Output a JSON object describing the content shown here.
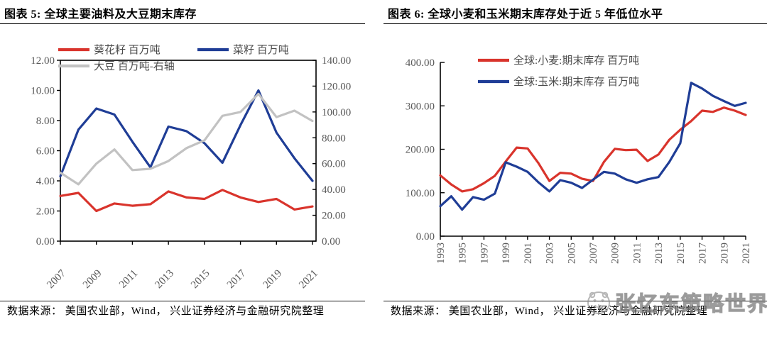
{
  "panels": [
    {
      "title": "图表 5:  全球主要油料及大豆期末库存",
      "source": "数据来源： 美国农业部，Wind， 兴业证券经济与金融研究院整理"
    },
    {
      "title": "图表 6:  全球小麦和玉米期末库存处于近 5 年低位水平",
      "source": "数据来源： 美国农业部，Wind， 兴业证券经济与金融研究院整理"
    }
  ],
  "watermark": {
    "icon": "panda-logo",
    "text": "张忆东策略世界"
  },
  "colors": {
    "red_line": "#d9342c",
    "blue_line": "#1f3d96",
    "gray_line": "#c2c2c2",
    "axis_label": "#595959",
    "legend_text": "#4a4a4a",
    "axis_line": "#000000"
  },
  "chart_data": [
    {
      "type": "line",
      "title": "全球主要油料及大豆期末库存",
      "x": [
        2007,
        2008,
        2009,
        2010,
        2011,
        2012,
        2013,
        2014,
        2015,
        2016,
        2017,
        2018,
        2019,
        2020,
        2021
      ],
      "x_tick_labels": [
        "2007",
        "2009",
        "2011",
        "2013",
        "2015",
        "2017",
        "2019",
        "2021"
      ],
      "left_axis": {
        "min": 0,
        "max": 12,
        "ticks": [
          0,
          2,
          4,
          6,
          8,
          10,
          12
        ],
        "tick_labels": [
          "0.00",
          "2.00",
          "4.00",
          "6.00",
          "8.00",
          "10.00",
          "12.00"
        ]
      },
      "right_axis": {
        "min": 0,
        "max": 140,
        "ticks": [
          0,
          20,
          40,
          60,
          80,
          100,
          120,
          140
        ],
        "tick_labels": [
          "0.00",
          "20.00",
          "40.00",
          "60.00",
          "80.00",
          "100.00",
          "120.00",
          "140.00"
        ]
      },
      "grid": false,
      "legend_position": "top-left-two-rows",
      "series": [
        {
          "name": "葵花籽 百万吨",
          "axis": "left",
          "color": "#d9342c",
          "values": [
            3.0,
            3.2,
            2.0,
            2.5,
            2.35,
            2.45,
            3.3,
            2.9,
            2.8,
            3.4,
            2.9,
            2.6,
            2.8,
            2.1,
            2.3
          ]
        },
        {
          "name": "菜籽 百万吨",
          "axis": "left",
          "color": "#1f3d96",
          "values": [
            4.3,
            7.4,
            8.8,
            8.4,
            6.6,
            4.9,
            7.6,
            7.3,
            6.5,
            5.2,
            7.7,
            10.0,
            7.2,
            5.5,
            4.0
          ]
        },
        {
          "name": "大豆 百万吨-右轴",
          "axis": "right",
          "color": "#c2c2c2",
          "values": [
            53,
            44,
            60,
            71,
            55,
            56,
            62,
            72,
            78,
            97,
            100,
            114,
            96,
            101,
            93
          ]
        }
      ]
    },
    {
      "type": "line",
      "title": "全球小麦和玉米期末库存处于近 5 年低位水平",
      "x": [
        1993,
        1994,
        1995,
        1996,
        1997,
        1998,
        1999,
        2000,
        2001,
        2002,
        2003,
        2004,
        2005,
        2006,
        2007,
        2008,
        2009,
        2010,
        2011,
        2012,
        2013,
        2014,
        2015,
        2016,
        2017,
        2018,
        2019,
        2020,
        2021
      ],
      "x_tick_labels": [
        "1993",
        "1995",
        "1997",
        "1999",
        "2001",
        "2003",
        "2005",
        "2007",
        "2009",
        "2011",
        "2013",
        "2015",
        "2017",
        "2019",
        "2021"
      ],
      "left_axis": {
        "min": 0,
        "max": 400,
        "ticks": [
          0,
          100,
          200,
          300,
          400
        ],
        "tick_labels": [
          "0.00",
          "100.00",
          "200.00",
          "300.00",
          "400.00"
        ]
      },
      "grid": false,
      "legend_position": "top-center-two-rows",
      "series": [
        {
          "name": "全球:小麦:期末库存 百万吨",
          "axis": "left",
          "color": "#d9342c",
          "values": [
            140,
            119,
            103,
            108,
            122,
            139,
            172,
            204,
            202,
            168,
            127,
            146,
            144,
            132,
            127,
            171,
            201,
            198,
            199,
            173,
            188,
            222,
            245,
            265,
            289,
            286,
            296,
            289,
            279
          ]
        },
        {
          "name": "全球:玉米:期末库存 百万吨",
          "axis": "left",
          "color": "#1f3d96",
          "values": [
            69,
            92,
            61,
            90,
            84,
            98,
            170,
            160,
            148,
            124,
            103,
            129,
            123,
            111,
            130,
            148,
            144,
            131,
            123,
            131,
            136,
            171,
            214,
            353,
            340,
            323,
            311,
            300,
            307
          ]
        }
      ]
    }
  ]
}
